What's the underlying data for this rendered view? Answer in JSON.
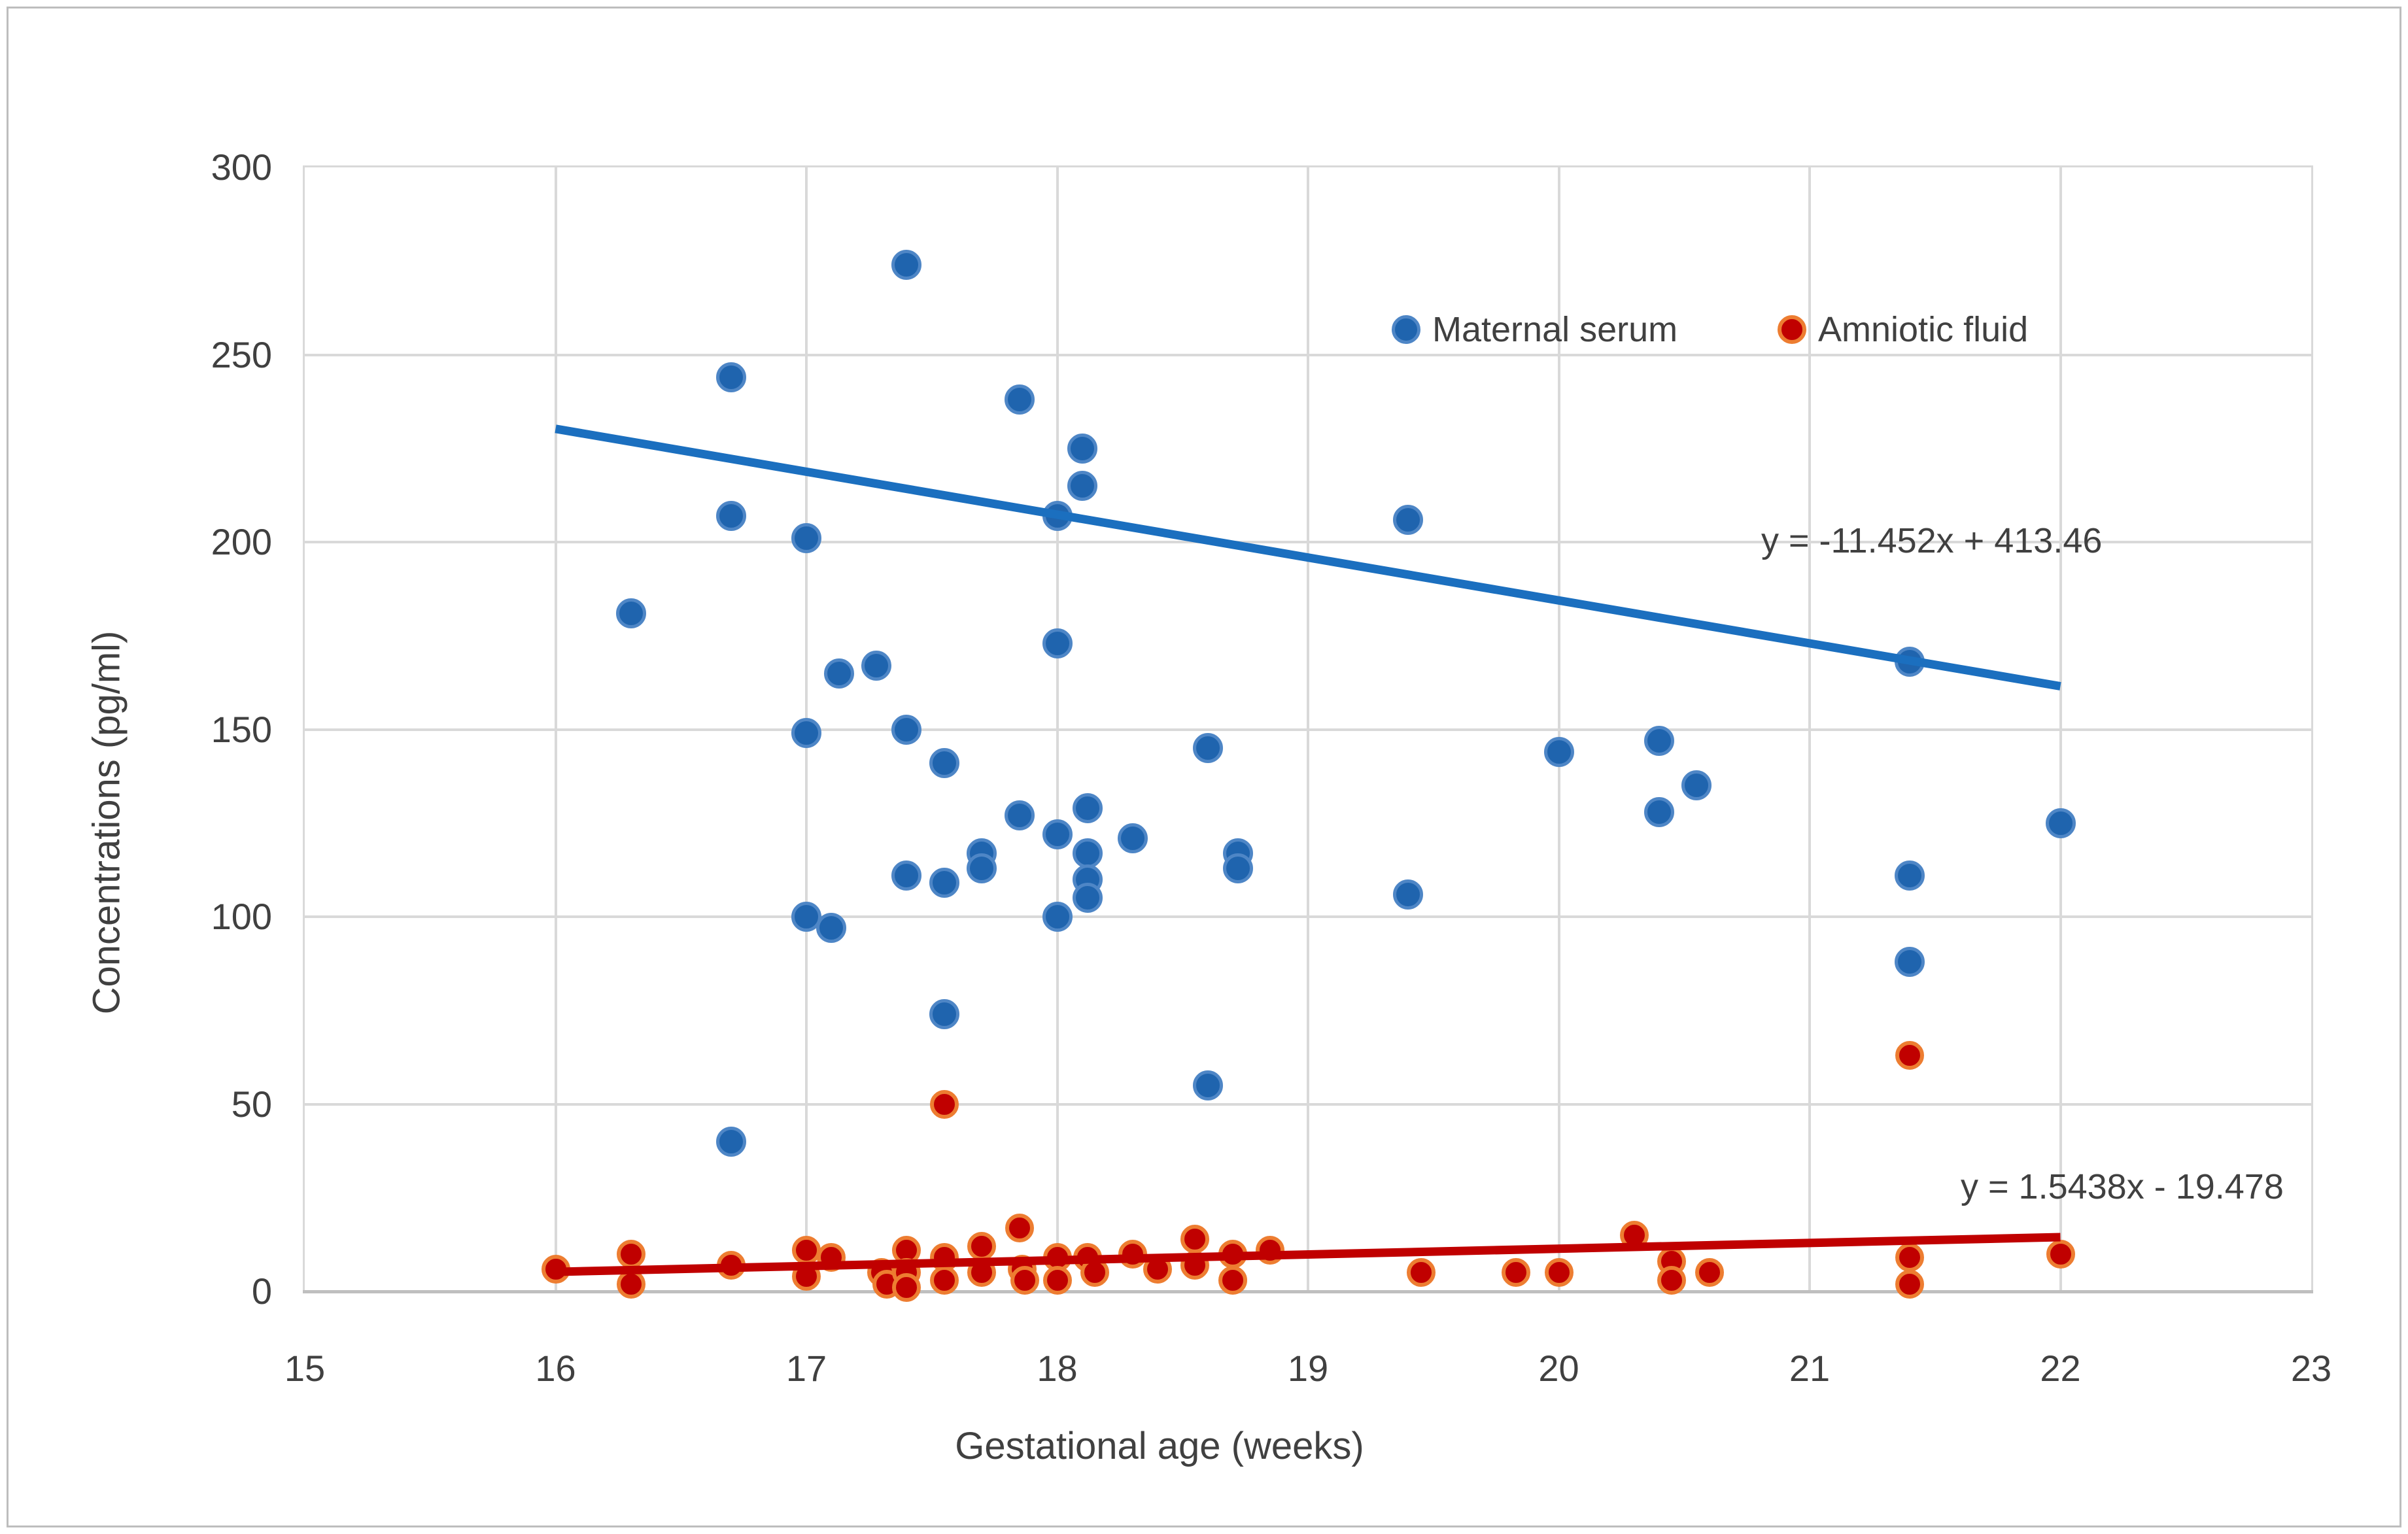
{
  "chart_data": {
    "type": "scatter",
    "title": "",
    "xlabel": "Gestational age (weeks)",
    "ylabel": "Concentrations (pg/ml)",
    "xlim": [
      15,
      23
    ],
    "ylim": [
      0,
      300
    ],
    "xticks": [
      "15",
      "16",
      "17",
      "18",
      "19",
      "20",
      "21",
      "22",
      "23"
    ],
    "yticks": [
      "0",
      "50",
      "100",
      "150",
      "200",
      "250",
      "300"
    ],
    "grid": true,
    "grid_color": "#D9D9D9",
    "axis_text_color": "#404040",
    "legend_position": "inside top right",
    "series": [
      {
        "name": "Maternal serum",
        "marker_fill": "#1F64AE",
        "marker_border": "#4E86C6",
        "trendline": {
          "equation": "y = -11.452x + 413.46",
          "slope": -11.452,
          "intercept": 413.46,
          "x_start": 16,
          "x_end": 22,
          "color": "#1B6FBF"
        },
        "points": [
          [
            16.3,
            181
          ],
          [
            16.7,
            244
          ],
          [
            16.7,
            207
          ],
          [
            16.7,
            40
          ],
          [
            17.0,
            201
          ],
          [
            17.0,
            149
          ],
          [
            17.0,
            100
          ],
          [
            17.1,
            97
          ],
          [
            17.13,
            165
          ],
          [
            17.28,
            167
          ],
          [
            17.4,
            274
          ],
          [
            17.4,
            150
          ],
          [
            17.4,
            111
          ],
          [
            17.55,
            141
          ],
          [
            17.55,
            109
          ],
          [
            17.55,
            74
          ],
          [
            17.7,
            117
          ],
          [
            17.7,
            113
          ],
          [
            17.85,
            238
          ],
          [
            17.85,
            127
          ],
          [
            18.0,
            207
          ],
          [
            18.0,
            173
          ],
          [
            18.0,
            122
          ],
          [
            18.0,
            100
          ],
          [
            18.1,
            225
          ],
          [
            18.1,
            215
          ],
          [
            18.12,
            129
          ],
          [
            18.12,
            117
          ],
          [
            18.12,
            110
          ],
          [
            18.12,
            105
          ],
          [
            18.3,
            121
          ],
          [
            18.6,
            145
          ],
          [
            18.6,
            55
          ],
          [
            18.72,
            117
          ],
          [
            18.72,
            113
          ],
          [
            19.4,
            206
          ],
          [
            19.4,
            106
          ],
          [
            20.0,
            144
          ],
          [
            20.4,
            147
          ],
          [
            20.4,
            128
          ],
          [
            20.55,
            135
          ],
          [
            21.4,
            168
          ],
          [
            21.4,
            111
          ],
          [
            21.4,
            88
          ],
          [
            22.0,
            125
          ]
        ]
      },
      {
        "name": "Amniotic fluid",
        "marker_fill": "#C00000",
        "marker_border": "#ED7D31",
        "trendline": {
          "equation": "y = 1.5438x - 19.478",
          "slope": 1.5438,
          "intercept": -19.478,
          "x_start": 16,
          "x_end": 22,
          "color": "#C00000"
        },
        "points": [
          [
            16.0,
            6
          ],
          [
            16.3,
            10
          ],
          [
            16.3,
            2
          ],
          [
            16.7,
            7
          ],
          [
            17.0,
            11
          ],
          [
            17.0,
            4
          ],
          [
            17.1,
            9
          ],
          [
            17.3,
            5
          ],
          [
            17.32,
            2
          ],
          [
            17.4,
            11
          ],
          [
            17.4,
            5
          ],
          [
            17.4,
            1
          ],
          [
            17.55,
            50
          ],
          [
            17.55,
            9
          ],
          [
            17.55,
            3
          ],
          [
            17.7,
            12
          ],
          [
            17.7,
            5
          ],
          [
            17.85,
            17
          ],
          [
            17.86,
            6
          ],
          [
            17.87,
            3
          ],
          [
            18.0,
            9
          ],
          [
            18.0,
            3
          ],
          [
            18.12,
            9
          ],
          [
            18.15,
            5
          ],
          [
            18.3,
            10
          ],
          [
            18.4,
            6
          ],
          [
            18.55,
            14
          ],
          [
            18.55,
            7
          ],
          [
            18.7,
            10
          ],
          [
            18.7,
            3
          ],
          [
            18.85,
            11
          ],
          [
            19.45,
            5
          ],
          [
            19.83,
            5
          ],
          [
            20.0,
            5
          ],
          [
            20.3,
            15
          ],
          [
            20.45,
            8
          ],
          [
            20.45,
            3
          ],
          [
            20.6,
            5
          ],
          [
            21.4,
            63
          ],
          [
            21.4,
            9
          ],
          [
            21.4,
            2
          ],
          [
            22.0,
            10
          ]
        ]
      }
    ]
  }
}
